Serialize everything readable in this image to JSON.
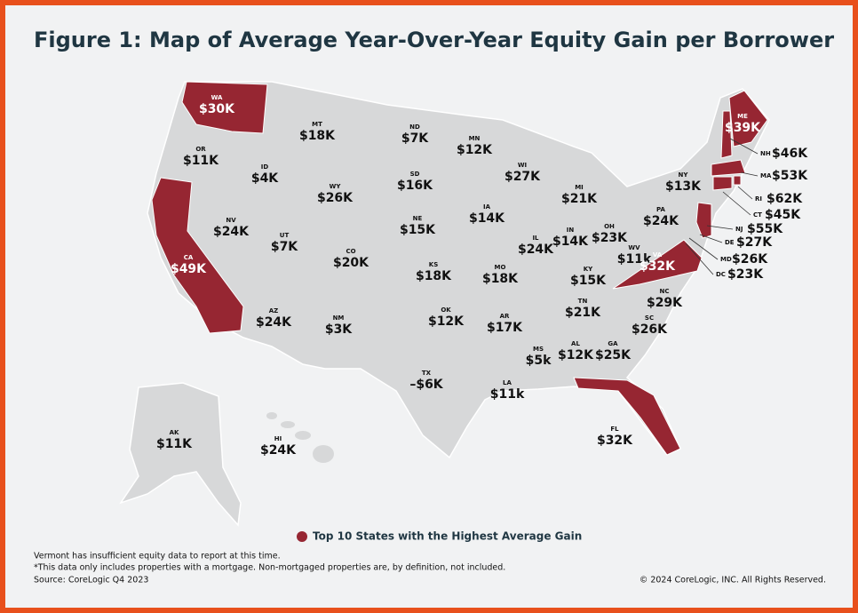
{
  "title": "Figure 1: Map of Average Year-Over-Year Equity Gain per Borrower",
  "map_color": "#d7d8d9",
  "highlight_color": "#962632",
  "states": [
    {
      "abbr": "WA",
      "label": "$30K",
      "highlight": true
    },
    {
      "abbr": "OR",
      "label": "$11K"
    },
    {
      "abbr": "CA",
      "label": "$49K",
      "highlight": true
    },
    {
      "abbr": "NV",
      "label": "$24K"
    },
    {
      "abbr": "ID",
      "label": "$4K"
    },
    {
      "abbr": "MT",
      "label": "$18K"
    },
    {
      "abbr": "WY",
      "label": "$26K"
    },
    {
      "abbr": "UT",
      "label": "$7K"
    },
    {
      "abbr": "AZ",
      "label": "$24K"
    },
    {
      "abbr": "CO",
      "label": "$20K"
    },
    {
      "abbr": "NM",
      "label": "$3K"
    },
    {
      "abbr": "ND",
      "label": "$7K"
    },
    {
      "abbr": "SD",
      "label": "$16K"
    },
    {
      "abbr": "NE",
      "label": "$15K"
    },
    {
      "abbr": "KS",
      "label": "$18K"
    },
    {
      "abbr": "OK",
      "label": "$12K"
    },
    {
      "abbr": "TX",
      "label": "–$6K"
    },
    {
      "abbr": "MN",
      "label": "$12K"
    },
    {
      "abbr": "IA",
      "label": "$14K"
    },
    {
      "abbr": "MO",
      "label": "$18K"
    },
    {
      "abbr": "AR",
      "label": "$17K"
    },
    {
      "abbr": "LA",
      "label": "$11k"
    },
    {
      "abbr": "WI",
      "label": "$27K"
    },
    {
      "abbr": "IL",
      "label": "$24K"
    },
    {
      "abbr": "MS",
      "label": "$5k"
    },
    {
      "abbr": "MI",
      "label": "$21K"
    },
    {
      "abbr": "IN",
      "label": "$14K"
    },
    {
      "abbr": "KY",
      "label": "$15K"
    },
    {
      "abbr": "TN",
      "label": "$21K"
    },
    {
      "abbr": "AL",
      "label": "$12K"
    },
    {
      "abbr": "OH",
      "label": "$23K"
    },
    {
      "abbr": "GA",
      "label": "$25K"
    },
    {
      "abbr": "WV",
      "label": "$11k"
    },
    {
      "abbr": "SC",
      "label": "$26K"
    },
    {
      "abbr": "NC",
      "label": "$29K"
    },
    {
      "abbr": "PA",
      "label": "$24K"
    },
    {
      "abbr": "NY",
      "label": "$13K"
    },
    {
      "abbr": "VA",
      "label": "$32K",
      "highlight": true
    },
    {
      "abbr": "FL",
      "label": "$32K",
      "highlight": true
    },
    {
      "abbr": "ME",
      "label": "$39K",
      "highlight": true
    },
    {
      "abbr": "NH",
      "label": "$46K",
      "highlight": true
    },
    {
      "abbr": "MA",
      "label": "$53K",
      "highlight": true
    },
    {
      "abbr": "RI",
      "label": "$62K",
      "highlight": true
    },
    {
      "abbr": "CT",
      "label": "$45K",
      "highlight": true
    },
    {
      "abbr": "NJ",
      "label": "$55K",
      "highlight": true
    },
    {
      "abbr": "DE",
      "label": "$27K"
    },
    {
      "abbr": "MD",
      "label": "$26K"
    },
    {
      "abbr": "DC",
      "label": "$23K"
    },
    {
      "abbr": "AK",
      "label": "$11K"
    },
    {
      "abbr": "HI",
      "label": "$24K"
    }
  ],
  "legend": "Top 10 States with the Highest Average Gain",
  "notes": [
    "Vermont has insufficient equity data to report at this time.",
    "*This data only includes properties with a mortgage. Non-mortgaged properties are, by definition, not included.",
    "Source: CoreLogic Q4 2023"
  ],
  "copyright": "© 2024 CoreLogic, INC. All Rights Reserved."
}
